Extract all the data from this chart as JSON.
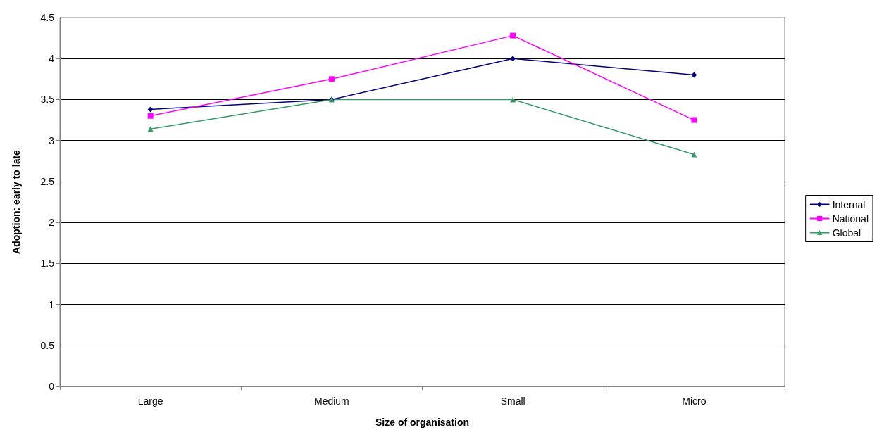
{
  "chart_data": {
    "type": "line",
    "xlabel": "Size of organisation",
    "ylabel": "Adoption: early to late",
    "categories": [
      "Large",
      "Medium",
      "Small",
      "Micro"
    ],
    "series": [
      {
        "name": "Internal",
        "color": "#000080",
        "marker": "diamond",
        "values": [
          3.38,
          3.5,
          4.0,
          3.8
        ]
      },
      {
        "name": "National",
        "color": "#ff00ff",
        "marker": "square",
        "values": [
          3.3,
          3.75,
          4.28,
          3.25
        ]
      },
      {
        "name": "Global",
        "color": "#339966",
        "marker": "triangle",
        "values": [
          3.14,
          3.5,
          3.5,
          2.83
        ]
      }
    ],
    "ylim": [
      0,
      4.5
    ],
    "yticks": [
      0,
      0.5,
      1,
      1.5,
      2,
      2.5,
      3,
      3.5,
      4,
      4.5
    ],
    "grid": "y",
    "legend": "right"
  }
}
